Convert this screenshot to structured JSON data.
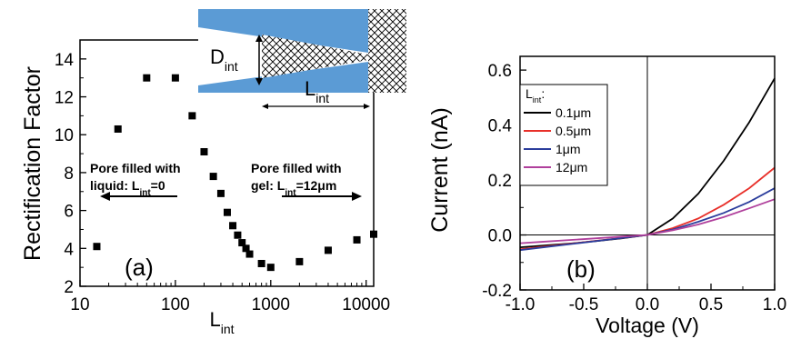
{
  "chart_data": [
    {
      "panel": "(a)",
      "type": "scatter",
      "xscale": "log",
      "xlim": [
        10,
        12000
      ],
      "ylim": [
        2,
        15
      ],
      "xlabel": "L",
      "xlabel_sub": "int",
      "ylabel": "Rectification Factor",
      "xticks": [
        "10",
        "100",
        "1000",
        "10000"
      ],
      "yticks": [
        "2",
        "4",
        "6",
        "8",
        "10",
        "12",
        "14"
      ],
      "points": [
        {
          "x": 15,
          "y": 4.1
        },
        {
          "x": 25,
          "y": 10.3
        },
        {
          "x": 50,
          "y": 13.0
        },
        {
          "x": 100,
          "y": 13.0
        },
        {
          "x": 150,
          "y": 11.0
        },
        {
          "x": 200,
          "y": 9.1
        },
        {
          "x": 250,
          "y": 7.8
        },
        {
          "x": 300,
          "y": 6.9
        },
        {
          "x": 350,
          "y": 5.9
        },
        {
          "x": 400,
          "y": 5.2
        },
        {
          "x": 450,
          "y": 4.7
        },
        {
          "x": 500,
          "y": 4.3
        },
        {
          "x": 550,
          "y": 4.0
        },
        {
          "x": 600,
          "y": 3.7
        },
        {
          "x": 800,
          "y": 3.2
        },
        {
          "x": 1000,
          "y": 3.0
        },
        {
          "x": 2000,
          "y": 3.3
        },
        {
          "x": 4000,
          "y": 3.9
        },
        {
          "x": 8000,
          "y": 4.45
        },
        {
          "x": 12000,
          "y": 4.75
        }
      ],
      "annotations": {
        "left_line1": "Pore filled with",
        "left_line2_pre": "liquid: L",
        "left_line2_sub": "int",
        "left_line2_post": "=0",
        "right_line1": "Pore filled with",
        "right_line2_pre": "gel: L",
        "right_line2_sub": "int",
        "right_line2_post": "=12μm"
      },
      "inset": {
        "d_label": "D",
        "d_sub": "int",
        "l_label": "L",
        "l_sub": "int",
        "pore_color": "#5b9bd5"
      }
    },
    {
      "panel": "(b)",
      "type": "line",
      "xlim": [
        -1.0,
        1.0
      ],
      "ylim": [
        -0.2,
        0.65
      ],
      "xlabel": "Voltage (V)",
      "ylabel": "Current (nA)",
      "xticks": [
        "-1.0",
        "-0.5",
        "0.0",
        "0.5",
        "1.0"
      ],
      "yticks": [
        "-0.2",
        "0.0",
        "0.2",
        "0.4",
        "0.6"
      ],
      "legend_title_pre": "L",
      "legend_title_sub": "int",
      "legend_title_post": ":",
      "legend_position": "top-left",
      "x": [
        -1.0,
        -0.8,
        -0.6,
        -0.4,
        -0.2,
        0.0,
        0.2,
        0.4,
        0.6,
        0.8,
        1.0
      ],
      "series": [
        {
          "name": "0.1μm",
          "color": "#000000",
          "values": [
            -0.045,
            -0.038,
            -0.031,
            -0.022,
            -0.012,
            0.0,
            0.06,
            0.15,
            0.27,
            0.41,
            0.57
          ]
        },
        {
          "name": "0.5μm",
          "color": "#e8302a",
          "values": [
            -0.052,
            -0.042,
            -0.032,
            -0.021,
            -0.011,
            0.0,
            0.025,
            0.06,
            0.11,
            0.17,
            0.245
          ]
        },
        {
          "name": "1μm",
          "color": "#2b3d9c",
          "values": [
            -0.055,
            -0.044,
            -0.033,
            -0.022,
            -0.011,
            0.0,
            0.02,
            0.048,
            0.08,
            0.12,
            0.17
          ]
        },
        {
          "name": "12μm",
          "color": "#b0409c",
          "values": [
            -0.03,
            -0.024,
            -0.018,
            -0.012,
            -0.006,
            0.0,
            0.017,
            0.038,
            0.065,
            0.097,
            0.13
          ]
        }
      ]
    }
  ]
}
